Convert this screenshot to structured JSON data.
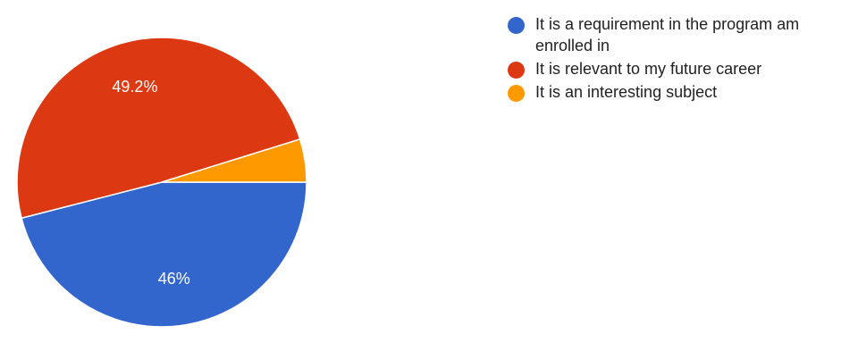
{
  "chart_data": {
    "type": "pie",
    "slices": [
      {
        "label": "It is a requirement in the program am enrolled in",
        "value": 46,
        "value_label": "46%",
        "color": "#3366cc"
      },
      {
        "label": "It is relevant to my future career",
        "value": 49.2,
        "value_label": "49.2%",
        "color": "#dc3912"
      },
      {
        "label": "It is an interesting subject",
        "value": 4.8,
        "value_label": "",
        "color": "#ff9900"
      }
    ],
    "legend_position": "right"
  }
}
